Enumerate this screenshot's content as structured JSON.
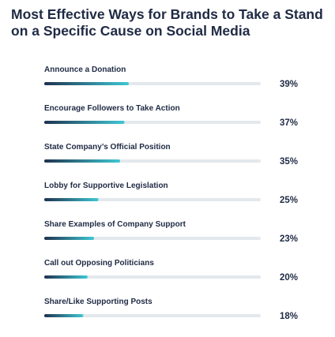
{
  "chart_data": {
    "type": "bar",
    "orientation": "horizontal",
    "title": "Most Effective Ways for Brands to Take a Stand on a Specific Cause on Social Media",
    "categories": [
      "Announce a Donation",
      "Encourage Followers to Take Action",
      "State Company’s Official Position",
      "Lobby for Supportive Legislation",
      "Share Examples of Company Support",
      "Call out Opposing Politicians",
      "Share/Like Supporting Posts"
    ],
    "values": [
      39,
      37,
      35,
      25,
      23,
      20,
      18
    ],
    "value_labels": [
      "39%",
      "37%",
      "35%",
      "25%",
      "23%",
      "20%",
      "18%"
    ],
    "xlim": [
      0,
      100
    ],
    "colors": {
      "bar_start": "#1e3350",
      "bar_end": "#3fc7d3",
      "track": "#e3e8ec",
      "text": "#1f2a44"
    }
  }
}
